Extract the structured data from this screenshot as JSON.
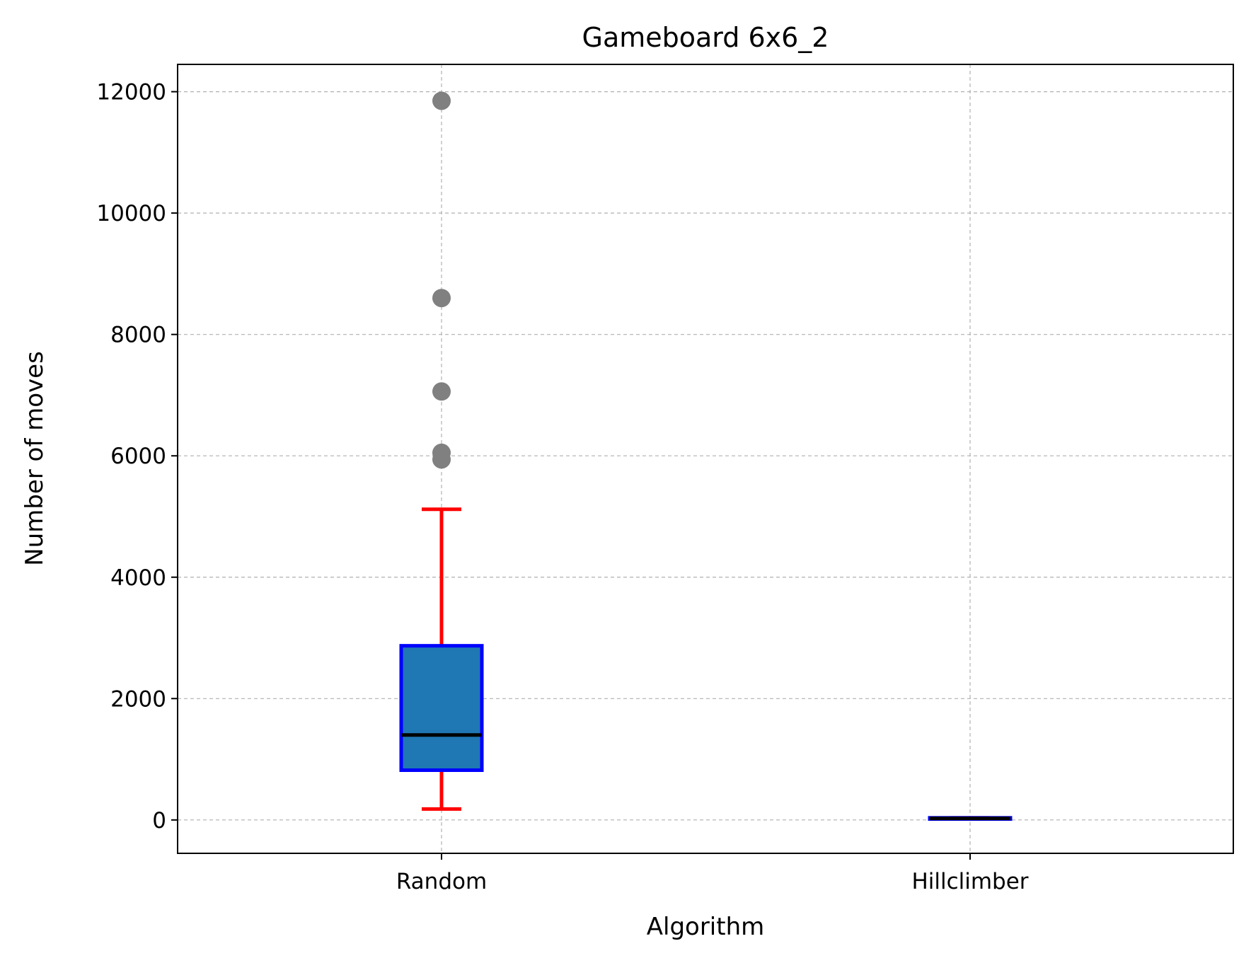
{
  "chart_data": {
    "type": "box",
    "title": "Gameboard 6x6_2",
    "xlabel": "Algorithm",
    "ylabel": "Number of moves",
    "ylim": [
      -550,
      12450
    ],
    "yticks": [
      0,
      2000,
      4000,
      6000,
      8000,
      10000,
      12000
    ],
    "grid": true,
    "categories": [
      "Random",
      "Hillclimber"
    ],
    "boxes": [
      {
        "category": "Random",
        "whisker_low": 180,
        "q1": 820,
        "median": 1400,
        "q3": 2870,
        "whisker_high": 5120,
        "outliers": [
          5940,
          6050,
          7060,
          8600,
          11850
        ]
      },
      {
        "category": "Hillclimber",
        "whisker_low": 15,
        "q1": 15,
        "median": 25,
        "q3": 35,
        "whisker_high": 35,
        "outliers": []
      }
    ],
    "colors": {
      "box_fill": "#1f77b4",
      "box_edge": "#0000ff",
      "whisker": "#ff0000",
      "median": "#000000",
      "outlier": "#808080",
      "grid": "#b0b0b0"
    }
  }
}
